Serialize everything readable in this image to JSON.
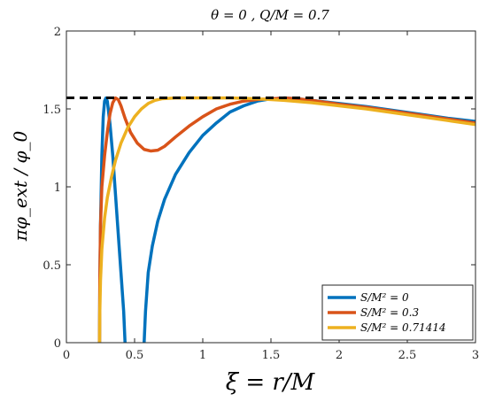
{
  "chart_data": {
    "type": "line",
    "title": "θ = 0 ,    Q/M = 0.7",
    "xlabel": "ξ = r/M",
    "ylabel": "πφ_ext / φ_0",
    "xlim": [
      0,
      3
    ],
    "ylim": [
      0,
      2
    ],
    "x_ticks": [
      "0",
      "0.5",
      "1",
      "1.5",
      "2",
      "2.5",
      "3"
    ],
    "y_ticks": [
      "0",
      "0.5",
      "1",
      "1.5",
      "2"
    ],
    "grid": false,
    "legend_position": "bottom-right",
    "reference_line": {
      "y": 1.5708,
      "style": "dashed",
      "color": "#000000"
    },
    "series": [
      {
        "name": "S/M² = 0",
        "color": "#0072BD",
        "segments": [
          [
            [
              0.243,
              0.0
            ],
            [
              0.245,
              0.35
            ],
            [
              0.25,
              0.75
            ],
            [
              0.26,
              1.2
            ],
            [
              0.27,
              1.45
            ],
            [
              0.28,
              1.55
            ],
            [
              0.29,
              1.57
            ],
            [
              0.3,
              1.55
            ],
            [
              0.32,
              1.4
            ],
            [
              0.34,
              1.2
            ],
            [
              0.36,
              0.95
            ],
            [
              0.38,
              0.7
            ],
            [
              0.4,
              0.45
            ],
            [
              0.42,
              0.2
            ],
            [
              0.43,
              0.0
            ]
          ],
          [
            [
              0.57,
              0.0
            ],
            [
              0.58,
              0.2
            ],
            [
              0.6,
              0.45
            ],
            [
              0.63,
              0.62
            ],
            [
              0.67,
              0.78
            ],
            [
              0.72,
              0.92
            ],
            [
              0.8,
              1.08
            ],
            [
              0.9,
              1.22
            ],
            [
              1.0,
              1.33
            ],
            [
              1.1,
              1.41
            ],
            [
              1.2,
              1.48
            ],
            [
              1.3,
              1.52
            ],
            [
              1.4,
              1.55
            ],
            [
              1.5,
              1.565
            ],
            [
              1.6,
              1.57
            ],
            [
              1.7,
              1.565
            ],
            [
              1.8,
              1.555
            ],
            [
              2.0,
              1.535
            ],
            [
              2.2,
              1.515
            ],
            [
              2.4,
              1.49
            ],
            [
              2.6,
              1.465
            ],
            [
              2.8,
              1.44
            ],
            [
              3.0,
              1.42
            ]
          ]
        ]
      },
      {
        "name": "S/M² = 0.3",
        "color": "#D95319",
        "segments": [
          [
            [
              0.243,
              0.0
            ],
            [
              0.245,
              0.4
            ],
            [
              0.25,
              0.75
            ],
            [
              0.26,
              1.0
            ],
            [
              0.28,
              1.2
            ],
            [
              0.3,
              1.35
            ],
            [
              0.32,
              1.47
            ],
            [
              0.34,
              1.54
            ],
            [
              0.36,
              1.57
            ],
            [
              0.38,
              1.56
            ],
            [
              0.4,
              1.52
            ],
            [
              0.43,
              1.44
            ],
            [
              0.47,
              1.35
            ],
            [
              0.52,
              1.28
            ],
            [
              0.57,
              1.24
            ],
            [
              0.62,
              1.23
            ],
            [
              0.67,
              1.235
            ],
            [
              0.72,
              1.26
            ],
            [
              0.8,
              1.32
            ],
            [
              0.9,
              1.39
            ],
            [
              1.0,
              1.45
            ],
            [
              1.1,
              1.5
            ],
            [
              1.2,
              1.53
            ],
            [
              1.3,
              1.55
            ],
            [
              1.4,
              1.56
            ],
            [
              1.5,
              1.565
            ],
            [
              1.6,
              1.57
            ],
            [
              1.7,
              1.565
            ],
            [
              1.8,
              1.555
            ],
            [
              2.0,
              1.53
            ],
            [
              2.2,
              1.51
            ],
            [
              2.4,
              1.485
            ],
            [
              2.6,
              1.46
            ],
            [
              2.8,
              1.435
            ],
            [
              3.0,
              1.41
            ]
          ]
        ]
      },
      {
        "name": "S/M² = 0.71414",
        "color": "#EDB120",
        "segments": [
          [
            [
              0.243,
              0.0
            ],
            [
              0.245,
              0.2
            ],
            [
              0.25,
              0.4
            ],
            [
              0.26,
              0.6
            ],
            [
              0.28,
              0.8
            ],
            [
              0.3,
              0.93
            ],
            [
              0.33,
              1.06
            ],
            [
              0.36,
              1.17
            ],
            [
              0.4,
              1.28
            ],
            [
              0.45,
              1.38
            ],
            [
              0.5,
              1.45
            ],
            [
              0.55,
              1.5
            ],
            [
              0.6,
              1.535
            ],
            [
              0.65,
              1.555
            ],
            [
              0.7,
              1.565
            ],
            [
              0.8,
              1.57
            ],
            [
              1.0,
              1.57
            ],
            [
              1.2,
              1.57
            ],
            [
              1.4,
              1.565
            ],
            [
              1.6,
              1.555
            ],
            [
              1.8,
              1.54
            ],
            [
              2.0,
              1.52
            ],
            [
              2.2,
              1.5
            ],
            [
              2.4,
              1.475
            ],
            [
              2.6,
              1.45
            ],
            [
              2.8,
              1.425
            ],
            [
              3.0,
              1.4
            ]
          ]
        ]
      }
    ]
  }
}
